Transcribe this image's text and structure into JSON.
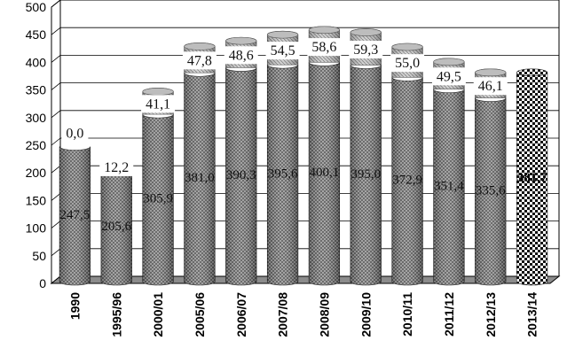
{
  "chart_data": {
    "type": "bar",
    "title": "",
    "xlabel": "",
    "ylabel": "",
    "ylim": [
      0,
      500
    ],
    "yticks": [
      0,
      50,
      100,
      150,
      200,
      250,
      300,
      350,
      400,
      450,
      500
    ],
    "grid": true,
    "legend": "none",
    "stacked": true,
    "categories": [
      "1990",
      "1995/96",
      "2000/01",
      "2005/06",
      "2006/07",
      "2007/08",
      "2008/09",
      "2009/10",
      "2010/11",
      "2011/12",
      "2012/13",
      "2013/14"
    ],
    "series": [
      {
        "values": [
          247.5,
          205.6,
          305.9,
          381.0,
          390.3,
          395.6,
          400.1,
          395.0,
          372.9,
          351.4,
          335.6,
          381.7
        ],
        "labels": [
          "247,5",
          "205,6",
          "305,9",
          "381,0",
          "390,3",
          "395,6",
          "400,1",
          "395,0",
          "372,9",
          "351,4",
          "335,6",
          "381,7"
        ]
      },
      {
        "values": [
          0.0,
          12.2,
          41.1,
          47.8,
          48.6,
          54.5,
          58.6,
          59.3,
          55.0,
          49.5,
          46.1,
          null
        ],
        "labels": [
          "0,0",
          "12,2",
          "41,1",
          "47,8",
          "48,6",
          "54,5",
          "58,6",
          "59,3",
          "55,0",
          "49,5",
          "46,1",
          ""
        ]
      }
    ],
    "colors": {
      "bar_base": "#3a3a3a",
      "bar_top_cap": "#bdbdbd",
      "last_bar": "#ffffff",
      "grid": "#000000",
      "floor": "#8c8c8c"
    }
  }
}
